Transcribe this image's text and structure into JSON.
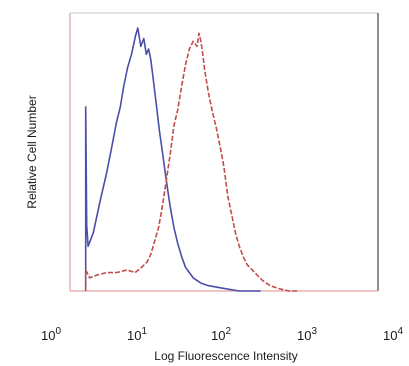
{
  "chart_data": {
    "type": "line",
    "title": "",
    "xlabel": "Log Fluorescence Intensity",
    "ylabel": "Relative Cell Number",
    "x_scale": "log",
    "xlim": [
      1,
      10000
    ],
    "ylim": [
      0,
      100
    ],
    "x_ticks": [
      {
        "value": 1,
        "base": "10",
        "exp": "0"
      },
      {
        "value": 10,
        "base": "10",
        "exp": "1"
      },
      {
        "value": 100,
        "base": "10",
        "exp": "2"
      },
      {
        "value": 1000,
        "base": "10",
        "exp": "3"
      },
      {
        "value": 10000,
        "base": "10",
        "exp": "4"
      }
    ],
    "grid": false,
    "legend": "none",
    "series": [
      {
        "color": "#4a4fa8",
        "style": "solid",
        "points": [
          [
            1.6,
            0
          ],
          [
            1.6,
            70
          ],
          [
            1.65,
            25
          ],
          [
            1.72,
            17
          ],
          [
            2.0,
            22
          ],
          [
            2.5,
            35
          ],
          [
            3.0,
            45
          ],
          [
            3.5,
            55
          ],
          [
            4.0,
            64
          ],
          [
            4.5,
            70
          ],
          [
            5.0,
            78
          ],
          [
            5.6,
            85
          ],
          [
            6.3,
            90
          ],
          [
            7.1,
            97
          ],
          [
            7.6,
            100
          ],
          [
            8.3,
            93
          ],
          [
            9.1,
            96
          ],
          [
            9.8,
            90
          ],
          [
            10.5,
            92
          ],
          [
            11.2,
            88
          ],
          [
            12.0,
            81
          ],
          [
            13.2,
            71
          ],
          [
            14.5,
            61
          ],
          [
            16.2,
            51
          ],
          [
            17.8,
            42
          ],
          [
            20.0,
            32
          ],
          [
            22.4,
            24
          ],
          [
            25.1,
            18
          ],
          [
            28.2,
            13
          ],
          [
            31.6,
            9
          ],
          [
            35.5,
            7
          ],
          [
            39.8,
            5
          ],
          [
            50.1,
            3
          ],
          [
            63.1,
            2
          ],
          [
            100,
            1
          ],
          [
            158,
            0
          ],
          [
            300,
            0
          ]
        ]
      },
      {
        "color": "#c24c4c",
        "style": "dashed",
        "points": [
          [
            1.6,
            0
          ],
          [
            1.6,
            8
          ],
          [
            1.8,
            5
          ],
          [
            2.2,
            6
          ],
          [
            3.0,
            7
          ],
          [
            4.0,
            7
          ],
          [
            5.5,
            8
          ],
          [
            7.0,
            7
          ],
          [
            8.5,
            9
          ],
          [
            10.0,
            11
          ],
          [
            11.2,
            14
          ],
          [
            12.6,
            19
          ],
          [
            14.1,
            24
          ],
          [
            15.8,
            32
          ],
          [
            17.8,
            42
          ],
          [
            20.0,
            52
          ],
          [
            22.4,
            63
          ],
          [
            25.1,
            69
          ],
          [
            28.2,
            78
          ],
          [
            31.6,
            86
          ],
          [
            35.5,
            92
          ],
          [
            39.8,
            95
          ],
          [
            44.7,
            93
          ],
          [
            47.3,
            98
          ],
          [
            50.1,
            95
          ],
          [
            53.1,
            90
          ],
          [
            56.2,
            84
          ],
          [
            63.1,
            75
          ],
          [
            70.8,
            68
          ],
          [
            79.4,
            62
          ],
          [
            89.1,
            55
          ],
          [
            100,
            47
          ],
          [
            112,
            36
          ],
          [
            126,
            29
          ],
          [
            141,
            22
          ],
          [
            158,
            17
          ],
          [
            178,
            13
          ],
          [
            200,
            10
          ],
          [
            251,
            7
          ],
          [
            316,
            4
          ],
          [
            398,
            2
          ],
          [
            501,
            1
          ],
          [
            700,
            0
          ],
          [
            900,
            0
          ]
        ]
      }
    ]
  }
}
